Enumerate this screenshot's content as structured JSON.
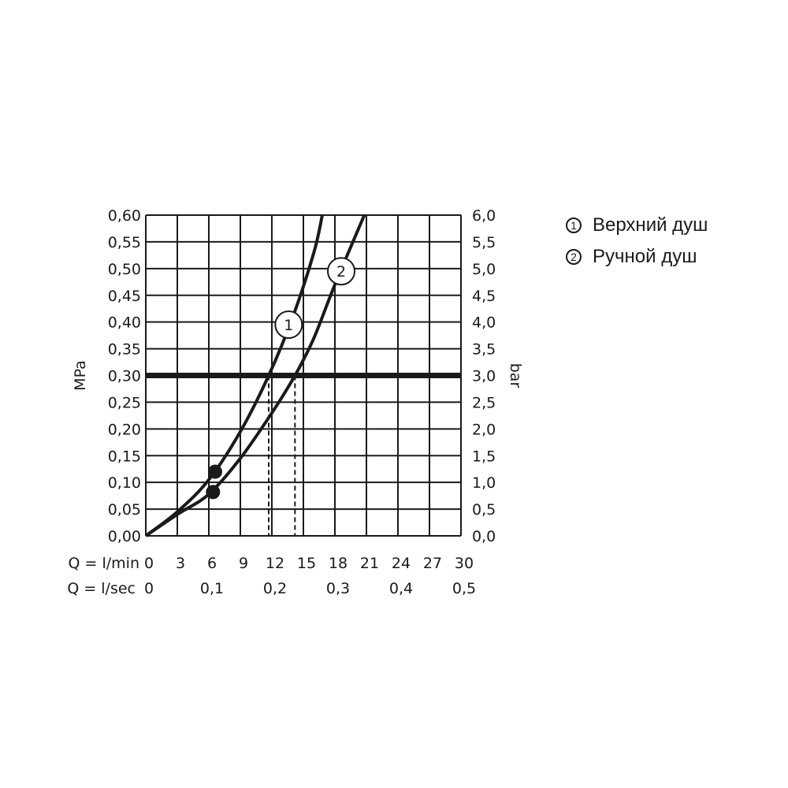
{
  "chart_data": {
    "type": "line",
    "ylabel_left": "MPa",
    "ylabel_right": "bar",
    "x_label_lmin": "Q = l/min",
    "x_label_lsec": "Q = l/sec",
    "x_ticks_lmin": [
      "0",
      "3",
      "6",
      "9",
      "12",
      "15",
      "18",
      "21",
      "24",
      "27",
      "30"
    ],
    "x_ticks_lsec": [
      {
        "x": 0,
        "label": "0"
      },
      {
        "x": 6,
        "label": "0,1"
      },
      {
        "x": 12,
        "label": "0,2"
      },
      {
        "x": 18,
        "label": "0,3"
      },
      {
        "x": 24,
        "label": "0,4"
      },
      {
        "x": 30,
        "label": "0,5"
      }
    ],
    "y_ticks_left": [
      "0,00",
      "0,05",
      "0,10",
      "0,15",
      "0,20",
      "0,25",
      "0,30",
      "0,35",
      "0,40",
      "0,45",
      "0,50",
      "0,55",
      "0,60"
    ],
    "y_ticks_right": [
      "0,0",
      "0,5",
      "1,0",
      "1,5",
      "2,0",
      "2,5",
      "3,0",
      "3,5",
      "4,0",
      "4,5",
      "5,0",
      "5,5",
      "6,0"
    ],
    "xlim": [
      0,
      30
    ],
    "ylim": [
      0,
      0.6
    ],
    "grid": true,
    "reference_line": {
      "y": 0.3
    },
    "series": [
      {
        "name": "1",
        "points": [
          [
            0,
            0
          ],
          [
            3,
            0.045
          ],
          [
            6,
            0.105
          ],
          [
            9,
            0.195
          ],
          [
            11.7,
            0.3
          ],
          [
            14,
            0.41
          ],
          [
            16,
            0.53
          ],
          [
            16.8,
            0.6
          ]
        ],
        "marker": {
          "x": 6.6,
          "y": 0.12
        },
        "intersect_x": 11.7,
        "label_pos": {
          "x": 13.6,
          "y": 0.395
        }
      },
      {
        "name": "2",
        "points": [
          [
            0,
            0
          ],
          [
            3,
            0.04
          ],
          [
            6,
            0.078
          ],
          [
            9,
            0.145
          ],
          [
            12,
            0.23
          ],
          [
            14.2,
            0.3
          ],
          [
            16,
            0.37
          ],
          [
            18,
            0.47
          ],
          [
            20.8,
            0.6
          ]
        ],
        "marker": {
          "x": 6.4,
          "y": 0.082
        },
        "intersect_x": 14.2,
        "label_pos": {
          "x": 18.6,
          "y": 0.495
        }
      }
    ]
  },
  "legend": {
    "items": [
      {
        "num": "1",
        "label": "Верхний душ"
      },
      {
        "num": "2",
        "label": "Ручной душ"
      }
    ]
  }
}
